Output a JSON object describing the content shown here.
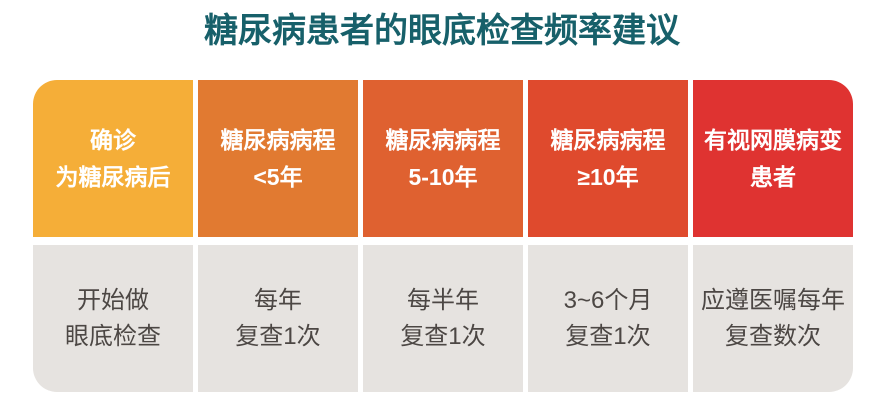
{
  "page": {
    "background_color": "#FFFFFF"
  },
  "title": {
    "text": "糖尿病患者的眼底检查频率建议",
    "color": "#17606A"
  },
  "table": {
    "header_text_color": "#FFFFFF",
    "body_bg_color": "#E6E3E0",
    "body_text_color": "#4C4744",
    "columns": [
      {
        "header": "确诊\n为糖尿病后",
        "body": "开始做\n眼底检查",
        "header_bg": "#F5AE38"
      },
      {
        "header": "糖尿病病程\n<5年",
        "body": "每年\n复查1次",
        "header_bg": "#E17A31"
      },
      {
        "header": "糖尿病病程\n5-10年",
        "body": "每半年\n复查1次",
        "header_bg": "#DF6130"
      },
      {
        "header": "糖尿病病程\n≥10年",
        "body": "3~6个月\n复查1次",
        "header_bg": "#DF4A2D"
      },
      {
        "header": "有视网膜病变\n患者",
        "body": "应遵医嘱每年\n复查数次",
        "header_bg": "#DF3331"
      }
    ]
  },
  "chart_data": {
    "type": "table",
    "title": "糖尿病患者的眼底检查频率建议",
    "columns": [
      "确诊为糖尿病后",
      "糖尿病病程<5年",
      "糖尿病病程5-10年",
      "糖尿病病程≥10年",
      "有视网膜病变患者"
    ],
    "rows": [
      [
        "开始做眼底检查",
        "每年复查1次",
        "每半年复查1次",
        "3~6个月复查1次",
        "应遵医嘱每年复查数次"
      ]
    ],
    "layout_hints": {
      "header_colors": [
        "#F5AE38",
        "#E17A31",
        "#DF6130",
        "#DF4A2D",
        "#DF3331"
      ],
      "header_row_on_top": true,
      "rounded_outer_corners": true
    }
  }
}
